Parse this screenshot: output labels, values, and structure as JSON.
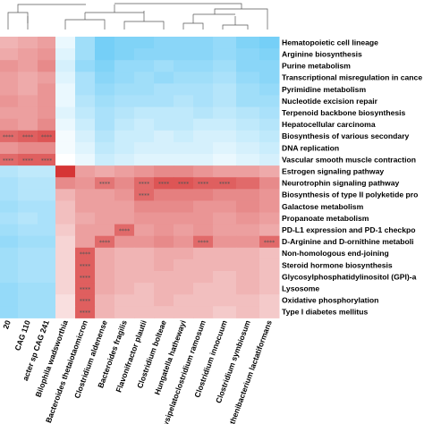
{
  "chart_data": {
    "type": "heatmap",
    "title": "",
    "significance_mark": "****",
    "rows": [
      "Hematopoietic cell lineage",
      "Arginine biosynthesis",
      "Purine metabolism",
      "Transcriptional misregulation in cance",
      "Pyrimidine metabolism",
      "Nucleotide excision repair",
      "Terpenoid backbone biosynthesis",
      "Hepatocellular carcinoma",
      "Biosynthesis of various secondary",
      "DNA replication",
      "Vascular smooth muscle contraction",
      "Estrogen signaling pathway",
      "Neurotrophin signaling pathway",
      "Biosynthesis of type II polyketide pro",
      "Galactose metabolism",
      "Propanoate metabolism",
      "PD-L1 expression and PD-1 checkpo",
      "D-Arginine and D-ornithine metaboli",
      "Non-homologous end-joining",
      "Steroid hormone biosynthesis",
      "Glycosylphosphatidylinositol (GPI)-a",
      "Lysosome",
      "Oxidative phosphorylation",
      "Type I diabetes mellitus"
    ],
    "columns": [
      "20",
      "CAG 110",
      "acter sp CAG 241",
      "Bilophila wadsworthia",
      "Bacteroides thetaiotaomicron",
      "Clostridium aldenense",
      "Bacteroides fragilis",
      "Flavonifractor plautii",
      "Clostridium bolteae",
      "Hungatella hathewayi",
      "Erysipelatoclostridium ramosum",
      "Clostridium innocuum",
      "Clostridium symbiosum",
      "Ruthenibacterium lactatiformans"
    ],
    "values": [
      [
        0.35,
        0.4,
        0.45,
        -0.1,
        -0.45,
        -0.65,
        -0.6,
        -0.6,
        -0.55,
        -0.55,
        -0.55,
        -0.5,
        -0.6,
        -0.65
      ],
      [
        0.4,
        0.45,
        0.5,
        -0.15,
        -0.45,
        -0.65,
        -0.6,
        -0.55,
        -0.55,
        -0.55,
        -0.55,
        -0.5,
        -0.55,
        -0.6
      ],
      [
        0.5,
        0.45,
        0.55,
        -0.2,
        -0.5,
        -0.6,
        -0.5,
        -0.5,
        -0.45,
        -0.5,
        -0.5,
        -0.45,
        -0.55,
        -0.55
      ],
      [
        0.45,
        0.4,
        0.45,
        -0.15,
        -0.4,
        -0.55,
        -0.5,
        -0.45,
        -0.5,
        -0.45,
        -0.45,
        -0.4,
        -0.5,
        -0.55
      ],
      [
        0.45,
        0.4,
        0.5,
        -0.1,
        -0.4,
        -0.5,
        -0.45,
        -0.45,
        -0.4,
        -0.4,
        -0.4,
        -0.35,
        -0.45,
        -0.5
      ],
      [
        0.5,
        0.45,
        0.5,
        -0.1,
        -0.35,
        -0.45,
        -0.4,
        -0.4,
        -0.4,
        -0.35,
        -0.4,
        -0.35,
        -0.45,
        -0.45
      ],
      [
        0.45,
        0.45,
        0.5,
        -0.15,
        -0.3,
        -0.4,
        -0.35,
        -0.3,
        -0.3,
        -0.3,
        -0.35,
        -0.3,
        -0.35,
        -0.4
      ],
      [
        0.5,
        0.45,
        0.55,
        -0.1,
        -0.25,
        -0.4,
        -0.3,
        -0.25,
        -0.3,
        -0.3,
        -0.25,
        -0.25,
        -0.3,
        -0.35
      ],
      [
        0.7,
        0.75,
        0.8,
        -0.05,
        -0.2,
        -0.35,
        -0.25,
        -0.25,
        -0.2,
        -0.25,
        -0.2,
        -0.2,
        -0.25,
        -0.3
      ],
      [
        0.5,
        0.55,
        0.55,
        -0.05,
        -0.15,
        -0.3,
        -0.25,
        -0.2,
        -0.2,
        -0.2,
        -0.2,
        -0.15,
        -0.2,
        -0.25
      ],
      [
        0.7,
        0.75,
        0.75,
        0.0,
        -0.1,
        -0.25,
        -0.2,
        -0.15,
        -0.15,
        -0.15,
        -0.15,
        -0.1,
        -0.15,
        -0.2
      ],
      [
        -0.35,
        -0.3,
        -0.3,
        0.95,
        0.45,
        0.4,
        0.45,
        0.5,
        0.55,
        0.55,
        0.5,
        0.45,
        0.45,
        0.4
      ],
      [
        -0.4,
        -0.35,
        -0.35,
        0.55,
        0.5,
        0.65,
        0.55,
        0.7,
        0.8,
        0.8,
        0.75,
        0.75,
        0.7,
        0.55
      ],
      [
        -0.4,
        -0.35,
        -0.35,
        0.35,
        0.45,
        0.45,
        0.5,
        0.7,
        0.6,
        0.6,
        0.6,
        0.55,
        0.55,
        0.5
      ],
      [
        -0.45,
        -0.4,
        -0.4,
        0.3,
        0.45,
        0.45,
        0.45,
        0.55,
        0.55,
        0.55,
        0.5,
        0.5,
        0.55,
        0.5
      ],
      [
        -0.4,
        -0.35,
        -0.4,
        0.3,
        0.4,
        0.45,
        0.45,
        0.5,
        0.5,
        0.5,
        0.5,
        0.45,
        0.5,
        0.45
      ],
      [
        -0.45,
        -0.4,
        -0.4,
        0.25,
        0.45,
        0.45,
        0.7,
        0.45,
        0.5,
        0.45,
        0.5,
        0.45,
        0.45,
        0.4
      ],
      [
        -0.5,
        -0.45,
        -0.45,
        0.2,
        0.45,
        0.7,
        0.5,
        0.5,
        0.55,
        0.5,
        0.7,
        0.5,
        0.5,
        0.7
      ],
      [
        -0.45,
        -0.4,
        -0.4,
        0.2,
        0.75,
        0.4,
        0.35,
        0.35,
        0.4,
        0.4,
        0.35,
        0.35,
        0.35,
        0.3
      ],
      [
        -0.45,
        -0.4,
        -0.4,
        0.2,
        0.75,
        0.4,
        0.35,
        0.35,
        0.4,
        0.35,
        0.35,
        0.35,
        0.35,
        0.3
      ],
      [
        -0.45,
        -0.4,
        -0.4,
        0.2,
        0.75,
        0.4,
        0.35,
        0.35,
        0.35,
        0.35,
        0.35,
        0.3,
        0.35,
        0.3
      ],
      [
        -0.5,
        -0.45,
        -0.45,
        0.2,
        0.75,
        0.4,
        0.35,
        0.3,
        0.35,
        0.35,
        0.3,
        0.3,
        0.35,
        0.3
      ],
      [
        -0.5,
        -0.45,
        -0.45,
        0.15,
        0.75,
        0.35,
        0.3,
        0.3,
        0.35,
        0.3,
        0.3,
        0.3,
        0.3,
        0.25
      ],
      [
        -0.5,
        -0.45,
        -0.45,
        0.15,
        0.75,
        0.35,
        0.3,
        0.3,
        0.3,
        0.3,
        0.3,
        0.25,
        0.3,
        0.25
      ]
    ],
    "significant": [
      [
        8,
        0
      ],
      [
        8,
        1
      ],
      [
        8,
        2
      ],
      [
        10,
        0
      ],
      [
        10,
        1
      ],
      [
        10,
        2
      ],
      [
        12,
        5
      ],
      [
        12,
        7
      ],
      [
        12,
        8
      ],
      [
        12,
        9
      ],
      [
        12,
        10
      ],
      [
        12,
        11
      ],
      [
        13,
        7
      ],
      [
        16,
        6
      ],
      [
        17,
        5
      ],
      [
        17,
        10
      ],
      [
        17,
        13
      ],
      [
        18,
        4
      ],
      [
        19,
        4
      ],
      [
        20,
        4
      ],
      [
        21,
        4
      ],
      [
        22,
        4
      ],
      [
        23,
        4
      ]
    ],
    "color_scale": {
      "low": "#2bb5f2",
      "mid": "#ffffff",
      "high": "#d42a2a"
    }
  }
}
